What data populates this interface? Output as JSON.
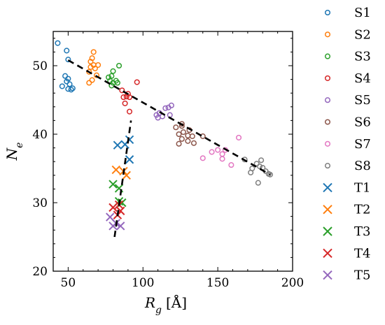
{
  "chart_data": {
    "type": "scatter",
    "xlabel": "R",
    "xlabel_sub": "g",
    "xlabel_unit": "[Å]",
    "ylabel": "N",
    "ylabel_sub": "e",
    "xlim": [
      40,
      200
    ],
    "ylim": [
      20,
      55
    ],
    "xticks": [
      50,
      100,
      150,
      200
    ],
    "yticks": [
      20,
      30,
      40,
      50
    ],
    "legend_position": "outside-right",
    "series": [
      {
        "name": "S1",
        "marker": "circle",
        "color": "#1f77b4",
        "x": [
          43,
          49,
          50,
          48,
          50,
          49,
          51,
          46,
          50,
          52,
          53
        ],
        "y": [
          53.3,
          52.2,
          50.9,
          48.5,
          48.1,
          47.7,
          47.3,
          47.0,
          46.6,
          46.5,
          46.7
        ]
      },
      {
        "name": "S2",
        "marker": "circle",
        "color": "#ff7f0e",
        "x": [
          67,
          66,
          65,
          67,
          68,
          70,
          65,
          64,
          69,
          66,
          64
        ],
        "y": [
          52.0,
          51.1,
          50.6,
          50.1,
          49.6,
          50.1,
          49.8,
          49.1,
          48.6,
          47.9,
          47.5
        ]
      },
      {
        "name": "S3",
        "marker": "circle",
        "color": "#2ca02c",
        "x": [
          80,
          79,
          77,
          84,
          82,
          78,
          80,
          83,
          79
        ],
        "y": [
          49.2,
          48.5,
          48.3,
          50.0,
          47.8,
          47.8,
          47.5,
          47.5,
          47.1
        ]
      },
      {
        "name": "S4",
        "marker": "circle",
        "color": "#d62728",
        "x": [
          96,
          86,
          90,
          87,
          89,
          91,
          88,
          91
        ],
        "y": [
          47.6,
          46.4,
          45.9,
          45.4,
          45.5,
          45.4,
          44.5,
          43.3
        ]
      },
      {
        "name": "S5",
        "marker": "circle",
        "color": "#9467bd",
        "x": [
          119,
          117,
          115,
          118,
          111,
          109,
          110,
          113
        ],
        "y": [
          44.2,
          43.9,
          43.8,
          42.8,
          43.1,
          42.8,
          42.4,
          42.6
        ]
      },
      {
        "name": "S6",
        "marker": "circle",
        "color": "#8c564b",
        "x": [
          122,
          126,
          131,
          127,
          124,
          126,
          130,
          134,
          124,
          130,
          126,
          133,
          140
        ],
        "y": [
          41.0,
          41.2,
          40.6,
          40.3,
          40.0,
          39.3,
          39.0,
          38.7,
          38.6,
          39.8,
          41.5,
          39.7,
          39.7
        ]
      },
      {
        "name": "S7",
        "marker": "circle",
        "color": "#e377c2",
        "x": [
          164,
          150,
          153,
          155,
          153,
          146,
          140,
          159
        ],
        "y": [
          39.5,
          37.7,
          37.1,
          37.7,
          36.4,
          37.4,
          36.5,
          35.5
        ]
      },
      {
        "name": "S8",
        "marker": "circle",
        "color": "#7f7f7f",
        "x": [
          179,
          176,
          172,
          180,
          168,
          182,
          185,
          184,
          173,
          178,
          177
        ],
        "y": [
          36.2,
          35.7,
          34.4,
          35.1,
          36.3,
          34.6,
          34.1,
          34.2,
          35.0,
          35.3,
          32.9
        ]
      },
      {
        "name": "T1",
        "marker": "x",
        "color": "#1f77b4",
        "x": [
          83,
          91,
          88,
          91
        ],
        "y": [
          38.4,
          39.2,
          38.5,
          36.3
        ]
      },
      {
        "name": "T2",
        "marker": "x",
        "color": "#ff7f0e",
        "x": [
          82,
          87,
          89
        ],
        "y": [
          34.8,
          34.6,
          34.0
        ]
      },
      {
        "name": "T3",
        "marker": "x",
        "color": "#2ca02c",
        "x": [
          80,
          84,
          84,
          86
        ],
        "y": [
          32.7,
          32.1,
          30.2,
          30.0
        ]
      },
      {
        "name": "T4",
        "marker": "x",
        "color": "#d62728",
        "x": [
          80,
          84,
          85,
          83
        ],
        "y": [
          29.3,
          29.7,
          28.8,
          28.2
        ]
      },
      {
        "name": "T5",
        "marker": "x",
        "color": "#9467bd",
        "x": [
          78,
          82,
          85,
          80
        ],
        "y": [
          27.9,
          27.0,
          26.6,
          26.6
        ]
      }
    ],
    "fit_lines": [
      {
        "style": "dashed",
        "color": "#000000",
        "x": [
          50,
          185
        ],
        "y": [
          50.8,
          34.1
        ]
      },
      {
        "style": "dashed",
        "color": "#000000",
        "x": [
          81,
          92
        ],
        "y": [
          25.0,
          42.0
        ]
      }
    ]
  }
}
